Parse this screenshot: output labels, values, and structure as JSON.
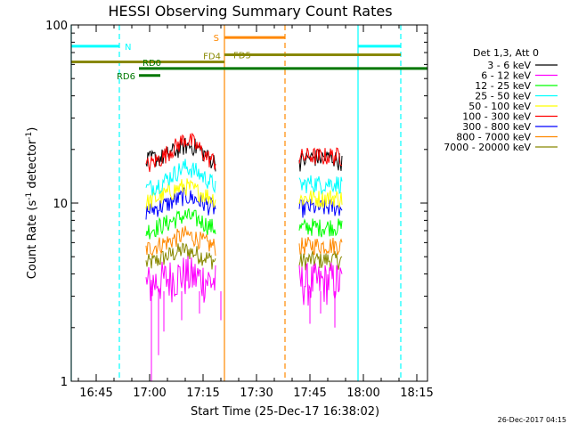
{
  "chart_data": {
    "type": "line",
    "title": "HESSI Observing Summary Count Rates",
    "xlabel": "Start Time (25-Dec-17 16:38:02)",
    "ylabel": "Count Rate (s",
    "ylabel_sup": "-1",
    "ylabel_mid": " detector",
    "ylabel_sup2": "-1",
    "ylabel_end": ")",
    "x_unit": "minutes after 16:38:02",
    "xlim": [
      0,
      100
    ],
    "ylim": [
      1,
      100
    ],
    "y_scale": "log",
    "x_ticks": [
      {
        "value": 7,
        "label": "16:45"
      },
      {
        "value": 22,
        "label": "17:00"
      },
      {
        "value": 37,
        "label": "17:15"
      },
      {
        "value": 52,
        "label": "17:30"
      },
      {
        "value": 67,
        "label": "17:45"
      },
      {
        "value": 82,
        "label": "18:00"
      },
      {
        "value": 97,
        "label": "18:15"
      }
    ],
    "y_ticks": [
      {
        "value": 1,
        "label": "1"
      },
      {
        "value": 10,
        "label": "10"
      },
      {
        "value": 100,
        "label": "100"
      }
    ],
    "legend_header": "Det 1,3, Att 0",
    "legend_position": "right",
    "series": [
      {
        "name": "3 - 6 keV",
        "color": "#000000",
        "levels": [
          17,
          18,
          18,
          19,
          20,
          21,
          21,
          20,
          18,
          17
        ],
        "levels2": [
          17,
          18,
          18,
          18,
          17
        ]
      },
      {
        "name": "6 - 12 keV",
        "color": "#ff00ff",
        "levels": [
          3.5,
          3.6,
          3.7,
          3.8,
          3.9,
          4.0,
          3.9,
          3.8,
          3.7,
          3.6
        ],
        "levels2": [
          3.6,
          3.6,
          3.6,
          3.7,
          3.6
        ]
      },
      {
        "name": "12 - 25 keV",
        "color": "#00ff00",
        "levels": [
          7,
          7.2,
          7.5,
          7.8,
          8.2,
          8.5,
          8.3,
          8.0,
          7.5,
          7.2
        ],
        "levels2": [
          7.2,
          7.4,
          7.3,
          7.4,
          7.3
        ]
      },
      {
        "name": "25 - 50 keV",
        "color": "#00ffff",
        "levels": [
          12,
          12.5,
          13,
          14,
          15,
          16,
          15.5,
          14.5,
          13.5,
          12.5
        ],
        "levels2": [
          12.5,
          13,
          12.8,
          13,
          12.8
        ]
      },
      {
        "name": "50 - 100 keV",
        "color": "#ffff00",
        "levels": [
          10,
          10.5,
          11,
          11.5,
          12,
          12.5,
          12,
          11.5,
          11,
          10.5
        ],
        "levels2": [
          10.5,
          10.8,
          10.6,
          10.8,
          10.6
        ]
      },
      {
        "name": "100 - 300 keV",
        "color": "#ff0000",
        "levels": [
          16,
          17,
          18,
          19.5,
          21,
          23,
          22,
          20,
          18,
          17
        ],
        "levels2": [
          18,
          18.5,
          18.2,
          18.5,
          18.2
        ]
      },
      {
        "name": "300 - 800 keV",
        "color": "#0000ff",
        "levels": [
          9,
          9.3,
          9.6,
          10,
          10.5,
          11,
          10.7,
          10.2,
          9.7,
          9.3
        ],
        "levels2": [
          9.3,
          9.5,
          9.4,
          9.5,
          9.4
        ]
      },
      {
        "name": "800 - 7000 keV",
        "color": "#ff8800",
        "levels": [
          5.5,
          5.7,
          5.9,
          6.1,
          6.4,
          6.7,
          6.5,
          6.2,
          5.9,
          5.7
        ],
        "levels2": [
          5.7,
          5.8,
          5.8,
          5.8,
          5.8
        ]
      },
      {
        "name": "7000 - 20000 keV",
        "color": "#888800",
        "levels": [
          4.6,
          4.7,
          4.9,
          5.1,
          5.3,
          5.5,
          5.3,
          5.1,
          4.9,
          4.7
        ],
        "levels2": [
          4.7,
          4.8,
          4.8,
          4.8,
          4.8
        ]
      }
    ],
    "segments": [
      {
        "x_start": 21,
        "x_end": 40.5,
        "fill": "levels"
      },
      {
        "x_start": 64,
        "x_end": 76,
        "fill": "levels2"
      }
    ],
    "markers": [
      {
        "label": "N",
        "color": "#00ffff",
        "x_start": 0,
        "x_end": 13.5,
        "y": 76
      },
      {
        "label": "",
        "color": "#00ffff",
        "x_start": 80.5,
        "x_end": 92.5,
        "y": 76
      },
      {
        "label": "S",
        "color": "#ff8800",
        "x_start": 43,
        "x_end": 60,
        "y": 85
      },
      {
        "label": "FD4",
        "color": "#888800",
        "x_start": 0,
        "x_end": 43,
        "y": 62
      },
      {
        "label": "FD5",
        "color": "#888800",
        "x_start": 43,
        "x_end": 92.5,
        "y": 68
      },
      {
        "label": "RD0",
        "color": "#007700",
        "x_start": 19,
        "x_end": 100,
        "y": 57
      },
      {
        "label": "RD6",
        "color": "#007700",
        "x_start": 19,
        "x_end": 25,
        "y": 52
      }
    ],
    "vlines": [
      {
        "x": 0,
        "color": "#00ffff",
        "style": "solid"
      },
      {
        "x": 13.5,
        "color": "#00ffff",
        "style": "dashed"
      },
      {
        "x": 43,
        "color": "#ff8800",
        "style": "solid"
      },
      {
        "x": 60,
        "color": "#ff8800",
        "style": "dashed"
      },
      {
        "x": 80.5,
        "color": "#00ffff",
        "style": "solid"
      },
      {
        "x": 92.5,
        "color": "#00ffff",
        "style": "dashed"
      }
    ],
    "timestamp": "26-Dec-2017 04:15"
  }
}
